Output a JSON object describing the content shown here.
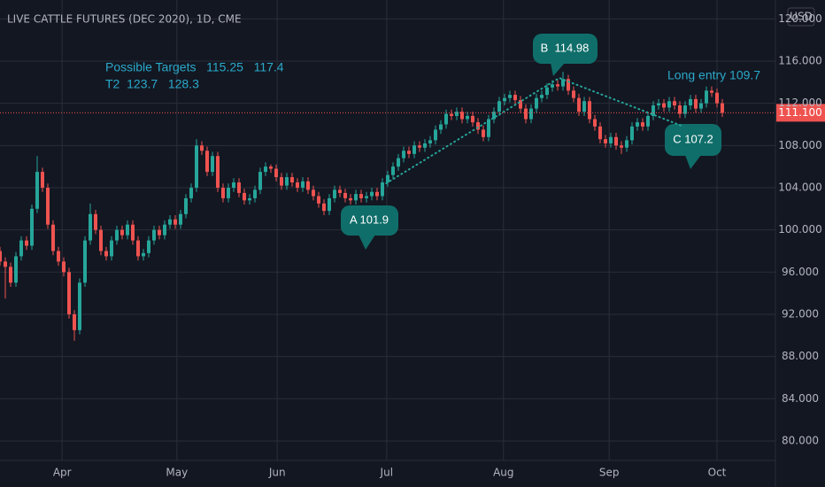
{
  "chart_data": {
    "type": "candlestick",
    "title": "LIVE CATTLE FUTURES (DEC 2020), 1D, CME",
    "currency": "USD",
    "up_color": "#26a69a",
    "down_color": "#ef5350",
    "open": [
      98,
      97,
      96.5,
      95,
      97.5,
      99,
      98.5,
      102,
      105.5,
      104,
      100.5,
      98,
      97,
      96,
      92,
      90.5,
      95,
      99,
      101.5,
      100,
      98,
      97.5,
      99,
      100,
      99.5,
      100.5,
      99,
      97.5,
      97.8,
      99,
      100,
      99.5,
      100.5,
      101,
      100.5,
      101.5,
      103,
      104,
      108,
      107.5,
      105.5,
      107,
      104,
      103,
      104,
      104.5,
      103.5,
      102.8,
      103,
      103.8,
      105.5,
      106,
      105.8,
      105,
      104.2,
      105,
      104.5,
      104,
      104.6,
      103.8,
      103.2,
      102.5,
      101.8,
      103,
      103.8,
      103.5,
      103,
      102.8,
      103.4,
      103,
      103.2,
      103.6,
      103.2,
      104.5,
      105.2,
      106,
      106.8,
      107.5,
      107.2,
      108,
      107.8,
      108.2,
      108.5,
      109.5,
      110,
      111,
      110.8,
      111.2,
      110.5,
      110.8,
      110.2,
      109.5,
      108.8,
      110.5,
      111.2,
      112.2,
      112.5,
      112.8,
      112.3,
      111.5,
      110.5,
      111.5,
      112.5,
      112.8,
      113.5,
      113.8,
      113.6,
      114.3,
      113.2,
      112.5,
      111.2,
      112.2,
      110.5,
      109.8,
      108.6,
      108.2,
      108.8,
      108,
      107.8,
      108.5,
      109.8,
      110.2,
      109.8,
      110.8,
      111.8,
      112,
      111.6,
      112.2,
      111.8,
      111,
      111.8,
      112.4,
      111.5,
      112,
      113.2,
      113,
      112
    ],
    "high": [
      98.4,
      97.4,
      96.9,
      97.9,
      99.4,
      99.4,
      102.4,
      107,
      105.9,
      104.4,
      100.9,
      98.4,
      97.4,
      96.4,
      92.4,
      95.4,
      99.4,
      102.5,
      101.9,
      100.4,
      98.4,
      99.4,
      100.4,
      100.4,
      100.9,
      100.9,
      99.4,
      98.2,
      99.4,
      100.4,
      100.4,
      100.9,
      101.4,
      101.4,
      101.9,
      103.4,
      104.4,
      108.6,
      108.4,
      107.9,
      107.4,
      107.4,
      104.4,
      104.4,
      104.9,
      104.9,
      103.9,
      103.4,
      104.2,
      105.9,
      106.4,
      106.2,
      106.2,
      105.4,
      105.4,
      105.4,
      104.9,
      105,
      105,
      104.2,
      103.6,
      102.9,
      103.4,
      104.2,
      104.2,
      103.9,
      103.4,
      103.8,
      103.8,
      103.6,
      104,
      104,
      104.9,
      105.6,
      106.4,
      107.2,
      107.9,
      107.9,
      108.4,
      108.4,
      108.6,
      108.9,
      109.9,
      110.4,
      111.4,
      111.4,
      111.6,
      111.6,
      111.2,
      111.2,
      110.6,
      109.9,
      110.9,
      111.6,
      112.6,
      112.9,
      113.2,
      113.2,
      112.7,
      111.9,
      111.9,
      112.9,
      113.2,
      113.9,
      114.2,
      114.2,
      114.98,
      114.7,
      113.6,
      112.9,
      112.6,
      112.6,
      110.9,
      110.2,
      109,
      109.2,
      109.2,
      108.4,
      108.9,
      110.2,
      110.6,
      110.6,
      111.2,
      112.2,
      112.4,
      112.4,
      112.6,
      112.6,
      112.2,
      112.2,
      112.8,
      112.8,
      112.4,
      113.6,
      113.6,
      113.4,
      112.4
    ],
    "low": [
      96.6,
      93.5,
      94.6,
      94.6,
      97.1,
      98.1,
      98.1,
      101.6,
      103.6,
      100.1,
      97.6,
      96.6,
      95.6,
      91.6,
      89.5,
      90.1,
      94.6,
      98.6,
      99.6,
      97.6,
      97.1,
      97.1,
      98.6,
      99.1,
      99.1,
      98.6,
      97.1,
      97.1,
      97.4,
      98.6,
      99.1,
      99.1,
      100.1,
      100.1,
      100.1,
      101.1,
      102.6,
      103.6,
      107.1,
      105.1,
      105.1,
      103.6,
      102.6,
      102.6,
      103.6,
      103.1,
      102.4,
      102.4,
      102.6,
      103.4,
      105.1,
      105.4,
      104.6,
      103.8,
      103.8,
      104.1,
      103.6,
      103.6,
      103.4,
      102.8,
      102.1,
      101.4,
      101.4,
      102.6,
      103.1,
      102.6,
      102.4,
      102.4,
      102.6,
      102.6,
      102.8,
      102.8,
      102.8,
      104.1,
      104.8,
      105.6,
      106.4,
      106.8,
      106.8,
      107.4,
      107.4,
      107.8,
      108.1,
      109.1,
      109.6,
      110.4,
      110.4,
      110.1,
      110.1,
      109.8,
      109.1,
      108.4,
      108.4,
      110.1,
      110.8,
      111.8,
      112.1,
      111.9,
      111.1,
      110.1,
      110.1,
      111.1,
      112.1,
      112.4,
      113.1,
      113.2,
      113.2,
      112.8,
      112.1,
      110.8,
      110.8,
      110.1,
      109.4,
      108.2,
      107.8,
      107.8,
      107.6,
      107.2,
      107.4,
      108.1,
      109.4,
      109.4,
      109.4,
      110.4,
      111.4,
      111.2,
      111.2,
      111.4,
      110.6,
      110.6,
      111.4,
      111.1,
      111.1,
      111.6,
      112.6,
      111.6,
      110.7
    ],
    "close": [
      97,
      96.5,
      95,
      97.5,
      99,
      98.5,
      102,
      105.5,
      104,
      100.5,
      98,
      97,
      96,
      92,
      90.5,
      95,
      99,
      101.5,
      100,
      98,
      97.5,
      99,
      100,
      99.5,
      100.5,
      99,
      97.5,
      97.8,
      99,
      100,
      99.5,
      100.5,
      101,
      100.5,
      101.5,
      103,
      104,
      108,
      107.5,
      105.5,
      107,
      104,
      103,
      104,
      104.5,
      103.5,
      102.8,
      103,
      103.8,
      105.5,
      106,
      105.8,
      105,
      104.2,
      105,
      104.5,
      104,
      104.6,
      103.8,
      103.2,
      102.5,
      101.8,
      103,
      103.8,
      103.5,
      103,
      102.8,
      103.4,
      103,
      103.2,
      103.6,
      103.2,
      104.5,
      105.2,
      106,
      106.8,
      107.5,
      107.2,
      108,
      107.8,
      108.2,
      108.5,
      109.5,
      110,
      111,
      110.8,
      111.2,
      110.5,
      110.8,
      110.2,
      109.5,
      108.8,
      110.5,
      111.2,
      112.2,
      112.5,
      112.8,
      112.3,
      111.5,
      110.5,
      111.5,
      112.5,
      112.8,
      113.5,
      113.8,
      113.6,
      114.3,
      113.2,
      112.5,
      111.2,
      112.2,
      110.5,
      109.8,
      108.6,
      108.2,
      108.8,
      108,
      107.8,
      108.5,
      109.8,
      110.2,
      109.8,
      110.8,
      111.8,
      112,
      111.6,
      112.2,
      111.8,
      111,
      111.8,
      112.4,
      111.5,
      112,
      113.2,
      113,
      112,
      111.1
    ],
    "xlim": [
      0,
      146
    ],
    "xticks": [
      {
        "value": 11.7,
        "label": "Apr"
      },
      {
        "value": 33.3,
        "label": "May"
      },
      {
        "value": 52.2,
        "label": "Jun"
      },
      {
        "value": 72.8,
        "label": "Jul"
      },
      {
        "value": 94.8,
        "label": "Aug"
      },
      {
        "value": 114.7,
        "label": "Sep"
      },
      {
        "value": 135,
        "label": "Oct"
      }
    ],
    "ylim": [
      78.15,
      121.79
    ],
    "yticks": [
      {
        "value": 80,
        "label": "80.000"
      },
      {
        "value": 84,
        "label": "84.000"
      },
      {
        "value": 88,
        "label": "88.000"
      },
      {
        "value": 92,
        "label": "92.000"
      },
      {
        "value": 96,
        "label": "96.000"
      },
      {
        "value": 100,
        "label": "100.000"
      },
      {
        "value": 104,
        "label": "104.000"
      },
      {
        "value": 108,
        "label": "108.000"
      },
      {
        "value": 112,
        "label": "112.000"
      },
      {
        "value": 116,
        "label": "116.000"
      },
      {
        "value": 120,
        "label": "120.000"
      }
    ],
    "grid": true,
    "last_price": {
      "value": 111.1,
      "label": "111.100"
    },
    "pattern": {
      "color": "#26a69a",
      "x": [
        72,
        105.3,
        128.7
      ],
      "y": [
        104.2,
        114.4,
        109.8
      ]
    },
    "annotations": [
      "Possible Targets   115.25   117.4",
      "T2  123.7   128.3",
      "Long entry 109.7",
      "B  114.98",
      "A 101.9",
      "C 107.2"
    ]
  }
}
